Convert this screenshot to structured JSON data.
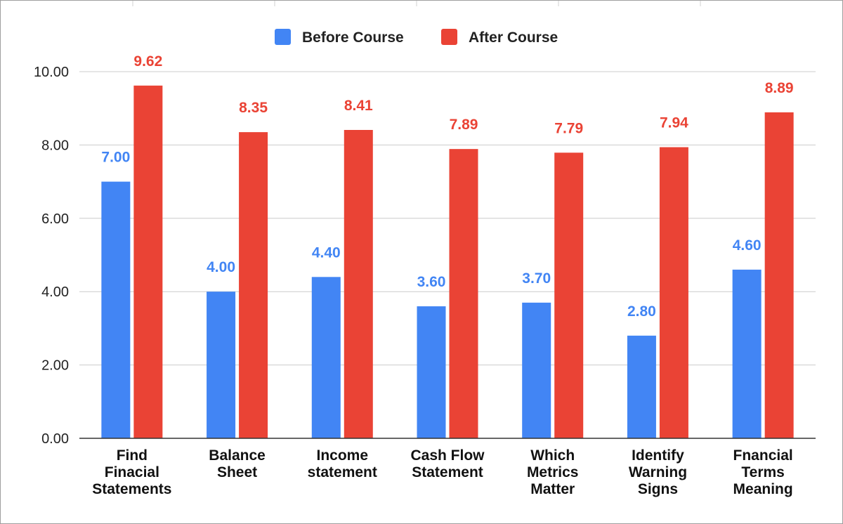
{
  "chart_data": {
    "type": "bar",
    "title": "",
    "xlabel": "",
    "ylabel": "",
    "ylim": [
      0,
      10
    ],
    "yticks": [
      "0.00",
      "2.00",
      "4.00",
      "6.00",
      "8.00",
      "10.00"
    ],
    "grid": true,
    "legend_position": "top-center",
    "categories": [
      [
        "Find",
        "Finacial",
        "Statements"
      ],
      [
        "Balance",
        "Sheet"
      ],
      [
        "Income",
        "statement"
      ],
      [
        "Cash Flow",
        "Statement"
      ],
      [
        "Which",
        "Metrics",
        "Matter"
      ],
      [
        "Identify",
        "Warning",
        "Signs"
      ],
      [
        "Fnancial",
        "Terms",
        "Meaning"
      ]
    ],
    "series": [
      {
        "name": "Before Course",
        "color": "#4285f4",
        "values": [
          7.0,
          4.0,
          4.4,
          3.6,
          3.7,
          2.8,
          4.6
        ],
        "labels": [
          "7.00",
          "4.00",
          "4.40",
          "3.60",
          "3.70",
          "2.80",
          "4.60"
        ]
      },
      {
        "name": "After Course",
        "color": "#ea4335",
        "values": [
          9.62,
          8.35,
          8.41,
          7.89,
          7.79,
          7.94,
          8.89
        ],
        "labels": [
          "9.62",
          "8.35",
          "8.41",
          "7.89",
          "7.79",
          "7.94",
          "8.89"
        ]
      }
    ]
  }
}
